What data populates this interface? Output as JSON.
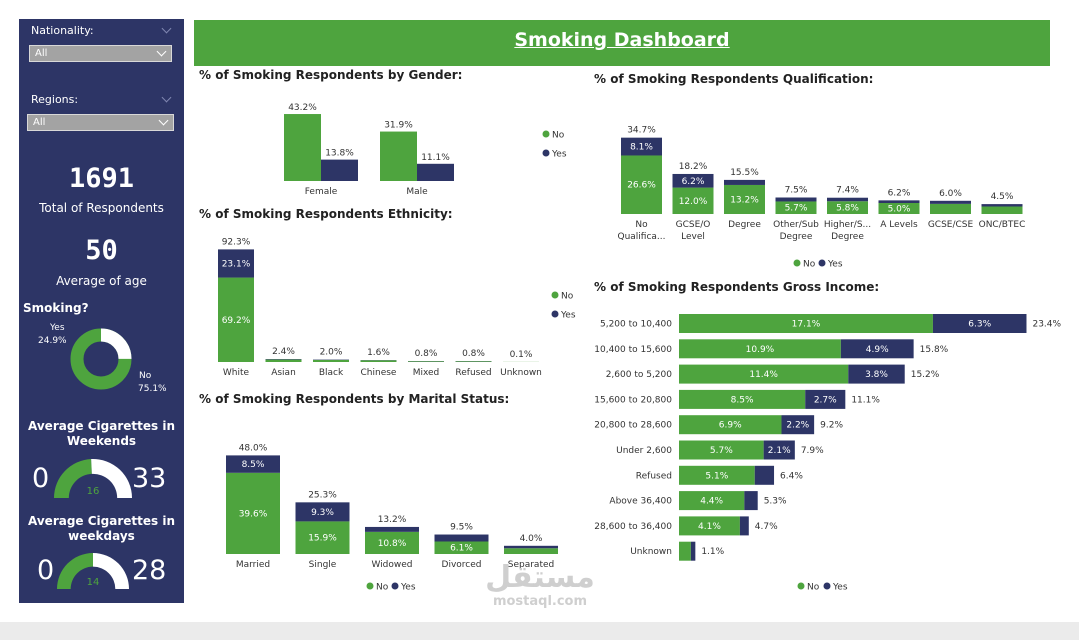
{
  "colors": {
    "no": "#4ea43e",
    "yes": "#2d3566",
    "sidebar": "#2d3566",
    "header": "#4ea43e"
  },
  "sidebar": {
    "nationality": {
      "label": "Nationality:",
      "value": "All"
    },
    "regions": {
      "label": "Regions:",
      "value": "All"
    },
    "total": {
      "value": "1691",
      "label": "Total of Respondents"
    },
    "age": {
      "value": "50",
      "label": "Average of age"
    },
    "smoking": {
      "title": "Smoking?",
      "yes_label": "Yes",
      "yes_value": "24.9%",
      "no_label": "No",
      "no_value": "75.1%",
      "yes_pct": 24.9
    },
    "weekends": {
      "title_line1": "Average Cigarettes in",
      "title_line2": "Weekends",
      "min": "0",
      "max": "33",
      "value": "16",
      "value_num": 16,
      "max_num": 33
    },
    "weekdays": {
      "title_line1": "Average Cigarettes in",
      "title_line2": "weekdays",
      "min": "0",
      "max": "28",
      "value": "14",
      "value_num": 14,
      "max_num": 28
    }
  },
  "header": {
    "title": "Smoking Dashboard"
  },
  "watermark": {
    "arabic": "مستقل",
    "latin": "mostaql.com"
  },
  "chart_data": [
    {
      "id": "gender",
      "type": "bar",
      "title": "% of Smoking Respondents by Gender:",
      "categories": [
        "Female",
        "Male"
      ],
      "series": [
        {
          "name": "No",
          "values": [
            43.2,
            31.9
          ],
          "labels": [
            "43.2%",
            "31.9%"
          ]
        },
        {
          "name": "Yes",
          "values": [
            13.8,
            11.1
          ],
          "labels": [
            "13.8%",
            "11.1%"
          ]
        }
      ],
      "legend": "right"
    },
    {
      "id": "qualification",
      "type": "bar",
      "stacked": true,
      "title": "% of Smoking Respondents Qualification:",
      "categories": [
        [
          "No",
          "Qualifica..."
        ],
        [
          "GCSE/O",
          "Level"
        ],
        [
          "Degree"
        ],
        [
          "Other/Sub",
          "Degree"
        ],
        [
          "Higher/S...",
          "Degree"
        ],
        [
          "A Levels"
        ],
        [
          "GCSE/CSE"
        ],
        [
          "ONC/BTEC"
        ]
      ],
      "totals": [
        34.7,
        18.2,
        15.5,
        7.5,
        7.4,
        6.2,
        6.0,
        4.5
      ],
      "total_labels": [
        "34.7%",
        "18.2%",
        "15.5%",
        "7.5%",
        "7.4%",
        "6.2%",
        "6.0%",
        "4.5%"
      ],
      "series": [
        {
          "name": "No",
          "values": [
            26.6,
            12.0,
            13.2,
            5.7,
            5.8,
            5.0,
            4.6,
            3.4
          ],
          "labels": [
            "26.6%",
            "12.0%",
            "13.2%",
            "5.7%",
            "5.8%",
            "5.0%",
            "",
            ""
          ]
        },
        {
          "name": "Yes",
          "values": [
            8.1,
            6.2,
            2.3,
            1.8,
            1.6,
            1.2,
            1.4,
            1.1
          ],
          "labels": [
            "8.1%",
            "6.2%",
            "",
            "",
            "",
            "",
            "",
            ""
          ]
        }
      ],
      "legend": "bottom"
    },
    {
      "id": "ethnicity",
      "type": "bar",
      "stacked": true,
      "title": "% of Smoking Respondents Ethnicity:",
      "categories": [
        [
          "White"
        ],
        [
          "Asian"
        ],
        [
          "Black"
        ],
        [
          "Chinese"
        ],
        [
          "Mixed"
        ],
        [
          "Refused"
        ],
        [
          "Unknown"
        ]
      ],
      "totals": [
        92.3,
        2.4,
        2.0,
        1.6,
        0.8,
        0.8,
        0.1
      ],
      "total_labels": [
        "92.3%",
        "2.4%",
        "2.0%",
        "1.6%",
        "0.8%",
        "0.8%",
        "0.1%"
      ],
      "series": [
        {
          "name": "No",
          "values": [
            69.2,
            2.0,
            1.7,
            1.4,
            0.6,
            0.6,
            0.1
          ],
          "labels": [
            "69.2%",
            "",
            "",
            "",
            "",
            "",
            ""
          ]
        },
        {
          "name": "Yes",
          "values": [
            23.1,
            0.4,
            0.3,
            0.2,
            0.2,
            0.2,
            0.0
          ],
          "labels": [
            "23.1%",
            "",
            "",
            "",
            "",
            "",
            ""
          ]
        }
      ],
      "legend": "right"
    },
    {
      "id": "marital",
      "type": "bar",
      "stacked": true,
      "title": "% of Smoking Respondents by Marital Status:",
      "categories": [
        [
          "Married"
        ],
        [
          "Single"
        ],
        [
          "Widowed"
        ],
        [
          "Divorced"
        ],
        [
          "Separated"
        ]
      ],
      "totals": [
        48.0,
        25.3,
        13.2,
        9.5,
        4.0
      ],
      "total_labels": [
        "48.0%",
        "25.3%",
        "13.2%",
        "9.5%",
        "4.0%"
      ],
      "series": [
        {
          "name": "No",
          "values": [
            39.6,
            15.9,
            10.8,
            6.1,
            2.8
          ],
          "labels": [
            "39.6%",
            "15.9%",
            "10.8%",
            "6.1%",
            ""
          ]
        },
        {
          "name": "Yes",
          "values": [
            8.5,
            9.3,
            2.4,
            3.4,
            1.2
          ],
          "labels": [
            "8.5%",
            "9.3%",
            "",
            "",
            ""
          ]
        }
      ],
      "legend": "bottom"
    },
    {
      "id": "income",
      "type": "bar",
      "stacked": true,
      "orientation": "horizontal",
      "title": "% of Smoking Respondents Gross Income:",
      "categories": [
        "5,200 to 10,400",
        "10,400 to 15,600",
        "2,600 to 5,200",
        "15,600 to 20,800",
        "20,800 to 28,600",
        "Under 2,600",
        "Refused",
        "Above 36,400",
        "28,600 to 36,400",
        "Unknown"
      ],
      "totals": [
        23.4,
        15.8,
        15.2,
        11.1,
        9.2,
        7.9,
        6.4,
        5.3,
        4.7,
        1.1
      ],
      "total_labels": [
        "23.4%",
        "15.8%",
        "15.2%",
        "11.1%",
        "9.2%",
        "7.9%",
        "6.4%",
        "5.3%",
        "4.7%",
        "1.1%"
      ],
      "series": [
        {
          "name": "No",
          "values": [
            17.1,
            10.9,
            11.4,
            8.5,
            6.9,
            5.7,
            5.1,
            4.4,
            4.1,
            0.8
          ],
          "labels": [
            "17.1%",
            "10.9%",
            "11.4%",
            "8.5%",
            "6.9%",
            "5.7%",
            "5.1%",
            "4.4%",
            "4.1%",
            ""
          ]
        },
        {
          "name": "Yes",
          "values": [
            6.3,
            4.9,
            3.8,
            2.7,
            2.2,
            2.1,
            1.3,
            0.9,
            0.6,
            0.3
          ],
          "labels": [
            "6.3%",
            "4.9%",
            "3.8%",
            "2.7%",
            "2.2%",
            "2.1%",
            "",
            "",
            "",
            ""
          ]
        }
      ],
      "legend": "bottom"
    }
  ]
}
